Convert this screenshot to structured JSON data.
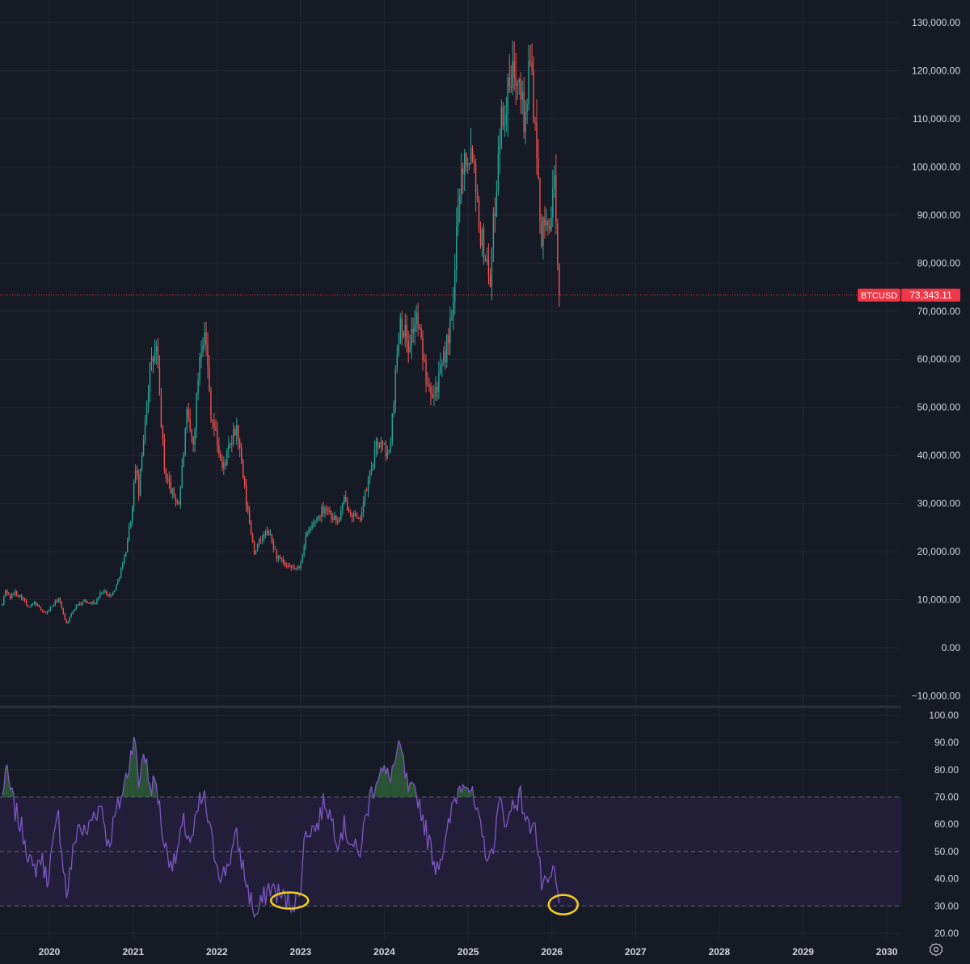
{
  "colors": {
    "background": "#161a25",
    "grid": "#222632",
    "axis_text": "#d1d4dc",
    "up": "#26a69a",
    "down": "#ef5350",
    "price_line": "#f23645",
    "rsi_line": "#7e57c2",
    "rsi_band": "#221e3a",
    "rsi_overbought_fill": "#2e5e3a",
    "annotation": "#f0d020"
  },
  "symbol_label": {
    "symbol": "BTCUSD",
    "price_text": "73,343.11"
  },
  "chart_data": [
    {
      "type": "candlestick",
      "symbol": "BTCUSD",
      "interval": "weekly",
      "last_price": 73343.11,
      "ylim": [
        -12000,
        133000
      ],
      "y_ticks": [
        -10000,
        0,
        10000,
        20000,
        30000,
        40000,
        50000,
        60000,
        70000,
        80000,
        90000,
        100000,
        110000,
        120000,
        130000
      ],
      "y_tick_labels": [
        "−10,000.00",
        "0.00",
        "10,000.00",
        "20,000.00",
        "30,000.00",
        "40,000.00",
        "50,000.00",
        "60,000.00",
        "70,000.00",
        "80,000.00",
        "90,000.00",
        "100,000.00",
        "110,000.00",
        "120,000.00",
        "130,000.00"
      ],
      "grid": true,
      "close_path": [
        [
          "2019-06-10",
          9000
        ],
        [
          "2019-06-24",
          12000
        ],
        [
          "2019-07-15",
          10500
        ],
        [
          "2019-08-05",
          11500
        ],
        [
          "2019-09-09",
          10200
        ],
        [
          "2019-09-30",
          8200
        ],
        [
          "2019-10-28",
          9300
        ],
        [
          "2019-12-16",
          7100
        ],
        [
          "2020-02-10",
          10200
        ],
        [
          "2020-03-16",
          5000
        ],
        [
          "2020-04-27",
          8800
        ],
        [
          "2020-06-01",
          9700
        ],
        [
          "2020-07-20",
          9300
        ],
        [
          "2020-08-17",
          11900
        ],
        [
          "2020-09-28",
          10800
        ],
        [
          "2020-10-19",
          13000
        ],
        [
          "2020-11-23",
          18500
        ],
        [
          "2020-12-28",
          29000
        ],
        [
          "2021-01-11",
          38000
        ],
        [
          "2021-01-25",
          32000
        ],
        [
          "2021-02-22",
          48000
        ],
        [
          "2021-03-15",
          58000
        ],
        [
          "2021-04-12",
          62000
        ],
        [
          "2021-05-17",
          37000
        ],
        [
          "2021-06-21",
          32000
        ],
        [
          "2021-07-19",
          30000
        ],
        [
          "2021-08-23",
          48000
        ],
        [
          "2021-09-20",
          42000
        ],
        [
          "2021-10-18",
          61000
        ],
        [
          "2021-11-08",
          67000
        ],
        [
          "2021-12-06",
          49000
        ],
        [
          "2022-01-10",
          41000
        ],
        [
          "2022-01-24",
          37000
        ],
        [
          "2022-03-28",
          46000
        ],
        [
          "2022-05-09",
          30000
        ],
        [
          "2022-06-13",
          20000
        ],
        [
          "2022-07-18",
          23000
        ],
        [
          "2022-08-15",
          24000
        ],
        [
          "2022-09-19",
          19000
        ],
        [
          "2022-11-07",
          16500
        ],
        [
          "2022-12-26",
          16500
        ],
        [
          "2023-01-23",
          23000
        ],
        [
          "2023-03-13",
          27000
        ],
        [
          "2023-04-17",
          29500
        ],
        [
          "2023-06-12",
          26000
        ],
        [
          "2023-07-10",
          30500
        ],
        [
          "2023-09-11",
          26000
        ],
        [
          "2023-10-23",
          34500
        ],
        [
          "2023-12-04",
          43000
        ],
        [
          "2024-01-22",
          40000
        ],
        [
          "2024-02-26",
          61000
        ],
        [
          "2024-03-11",
          69000
        ],
        [
          "2024-04-15",
          63000
        ],
        [
          "2024-05-20",
          69000
        ],
        [
          "2024-07-01",
          57000
        ],
        [
          "2024-08-05",
          53000
        ],
        [
          "2024-09-09",
          58000
        ],
        [
          "2024-10-28",
          70000
        ],
        [
          "2024-11-18",
          95000
        ],
        [
          "2024-12-16",
          102000
        ],
        [
          "2025-01-20",
          104000
        ],
        [
          "2025-02-24",
          86000
        ],
        [
          "2025-04-07",
          77000
        ],
        [
          "2025-05-19",
          108000
        ],
        [
          "2025-07-14",
          119000
        ],
        [
          "2025-08-11",
          122000
        ],
        [
          "2025-09-01",
          109000
        ],
        [
          "2025-10-06",
          124000
        ],
        [
          "2025-10-13",
          111000
        ],
        [
          "2025-11-17",
          86000
        ],
        [
          "2025-12-15",
          88000
        ],
        [
          "2026-01-12",
          95000
        ],
        [
          "2026-01-26",
          78000
        ],
        [
          "2026-02-02",
          73343.11
        ]
      ]
    },
    {
      "type": "line",
      "indicator": "RSI",
      "ylim": [
        20,
        100
      ],
      "y_ticks": [
        20,
        30,
        40,
        50,
        60,
        70,
        80,
        90,
        100
      ],
      "y_tick_labels": [
        "20.00",
        "30.00",
        "40.00",
        "50.00",
        "60.00",
        "70.00",
        "80.00",
        "90.00",
        "100.00"
      ],
      "band": [
        30,
        70
      ],
      "midline": 50,
      "annotations": [
        "circle at 2022-11 (~33)",
        "circle at 2026-02 (~31)"
      ],
      "values": [
        [
          "2019-06-10",
          70
        ],
        [
          "2019-06-24",
          80
        ],
        [
          "2019-08-05",
          65
        ],
        [
          "2019-09-16",
          55
        ],
        [
          "2019-10-21",
          42
        ],
        [
          "2019-11-25",
          48
        ],
        [
          "2019-12-23",
          40
        ],
        [
          "2020-02-10",
          63
        ],
        [
          "2020-03-16",
          34
        ],
        [
          "2020-05-04",
          60
        ],
        [
          "2020-06-08",
          56
        ],
        [
          "2020-07-13",
          64
        ],
        [
          "2020-08-17",
          67
        ],
        [
          "2020-09-14",
          52
        ],
        [
          "2020-10-12",
          62
        ],
        [
          "2020-11-16",
          72
        ],
        [
          "2020-12-14",
          82
        ],
        [
          "2021-01-04",
          94
        ],
        [
          "2021-01-25",
          74
        ],
        [
          "2021-02-15",
          88
        ],
        [
          "2021-03-15",
          74
        ],
        [
          "2021-04-12",
          75
        ],
        [
          "2021-05-17",
          52
        ],
        [
          "2021-06-28",
          45
        ],
        [
          "2021-08-09",
          60
        ],
        [
          "2021-09-13",
          53
        ],
        [
          "2021-10-18",
          68
        ],
        [
          "2021-11-08",
          69
        ],
        [
          "2021-12-13",
          52
        ],
        [
          "2022-01-24",
          40
        ],
        [
          "2022-03-28",
          55
        ],
        [
          "2022-05-16",
          36
        ],
        [
          "2022-06-20",
          26
        ],
        [
          "2022-08-15",
          37
        ],
        [
          "2022-09-19",
          35
        ],
        [
          "2022-11-14",
          31
        ],
        [
          "2022-12-26",
          33
        ],
        [
          "2023-01-23",
          58
        ],
        [
          "2023-03-13",
          59
        ],
        [
          "2023-04-17",
          69
        ],
        [
          "2023-06-12",
          55
        ],
        [
          "2023-07-10",
          59
        ],
        [
          "2023-09-11",
          48
        ],
        [
          "2023-10-30",
          70
        ],
        [
          "2023-12-11",
          80
        ],
        [
          "2024-01-22",
          77
        ],
        [
          "2024-03-11",
          88
        ],
        [
          "2024-04-15",
          72
        ],
        [
          "2024-05-27",
          70
        ],
        [
          "2024-07-08",
          55
        ],
        [
          "2024-08-12",
          45
        ],
        [
          "2024-09-23",
          52
        ],
        [
          "2024-10-28",
          68
        ],
        [
          "2024-12-16",
          78
        ],
        [
          "2025-01-13",
          72
        ],
        [
          "2025-03-03",
          55
        ],
        [
          "2025-04-07",
          46
        ],
        [
          "2025-05-19",
          68
        ],
        [
          "2025-06-23",
          60
        ],
        [
          "2025-07-14",
          68
        ],
        [
          "2025-08-18",
          70
        ],
        [
          "2025-09-22",
          58
        ],
        [
          "2025-10-13",
          64
        ],
        [
          "2025-11-17",
          38
        ],
        [
          "2025-12-08",
          36
        ],
        [
          "2026-01-12",
          43
        ],
        [
          "2026-01-26",
          33
        ],
        [
          "2026-02-02",
          31
        ]
      ]
    }
  ],
  "x_axis": {
    "years": [
      "2020",
      "2021",
      "2022",
      "2023",
      "2024",
      "2025",
      "2026",
      "2027",
      "2028",
      "2029",
      "2030"
    ]
  }
}
